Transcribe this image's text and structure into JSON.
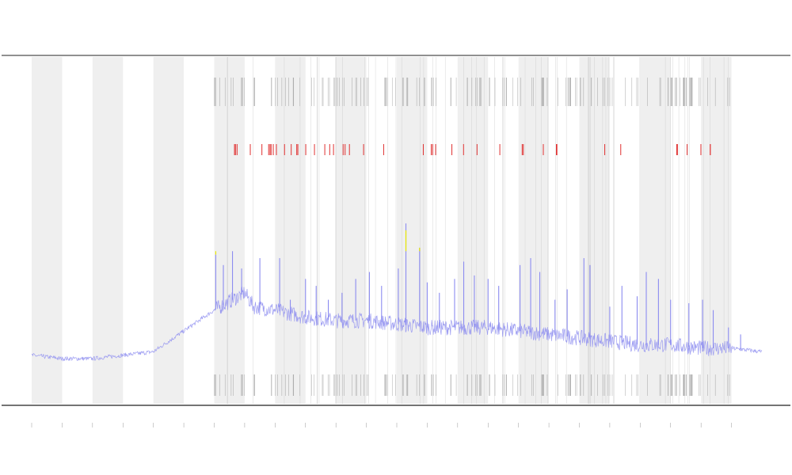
{
  "chart_data": {
    "type": "line",
    "title": "",
    "xlabel": "",
    "ylabel": "",
    "xlim": [
      0,
      24
    ],
    "ylim": [
      0,
      1
    ],
    "grid": false,
    "shaded_bands": [
      [
        0,
        1
      ],
      [
        2,
        3
      ],
      [
        4,
        5
      ],
      [
        6,
        7
      ],
      [
        8,
        9
      ],
      [
        10,
        11
      ],
      [
        12,
        13
      ],
      [
        14,
        15
      ],
      [
        16,
        17
      ],
      [
        18,
        19
      ],
      [
        20,
        21
      ],
      [
        22,
        23
      ]
    ],
    "x_tick_count": 24,
    "series": [
      {
        "color": "#8c8cf0",
        "threshold_colors": {
          "yellow": "#e8e800",
          "red": "#e03030"
        },
        "baseline": [
          [
            0.0,
            0.14
          ],
          [
            1.0,
            0.13
          ],
          [
            2.0,
            0.13
          ],
          [
            3.0,
            0.14
          ],
          [
            4.0,
            0.15
          ],
          [
            5.0,
            0.21
          ],
          [
            6.0,
            0.27
          ],
          [
            7.0,
            0.32
          ],
          [
            7.3,
            0.28
          ],
          [
            8.0,
            0.27
          ],
          [
            9.0,
            0.25
          ],
          [
            10.0,
            0.24
          ],
          [
            11.0,
            0.24
          ],
          [
            12.0,
            0.23
          ],
          [
            13.0,
            0.22
          ],
          [
            14.0,
            0.22
          ],
          [
            15.0,
            0.22
          ],
          [
            16.0,
            0.21
          ],
          [
            17.0,
            0.2
          ],
          [
            18.0,
            0.19
          ],
          [
            19.0,
            0.18
          ],
          [
            20.0,
            0.17
          ],
          [
            21.0,
            0.17
          ],
          [
            22.0,
            0.16
          ],
          [
            23.0,
            0.16
          ],
          [
            24.0,
            0.15
          ]
        ]
      }
    ],
    "spikes": [
      [
        6.05,
        0.43
      ],
      [
        6.3,
        0.4
      ],
      [
        6.6,
        0.44
      ],
      [
        6.9,
        0.39
      ],
      [
        7.5,
        0.42
      ],
      [
        8.15,
        0.42
      ],
      [
        8.5,
        0.3
      ],
      [
        9.0,
        0.36
      ],
      [
        9.35,
        0.34
      ],
      [
        9.75,
        0.3
      ],
      [
        10.2,
        0.32
      ],
      [
        10.65,
        0.36
      ],
      [
        11.1,
        0.38
      ],
      [
        11.5,
        0.34
      ],
      [
        12.05,
        0.39
      ],
      [
        12.3,
        0.52
      ],
      [
        12.75,
        0.45
      ],
      [
        13.0,
        0.35
      ],
      [
        13.4,
        0.32
      ],
      [
        13.9,
        0.36
      ],
      [
        14.2,
        0.41
      ],
      [
        14.55,
        0.37
      ],
      [
        15.0,
        0.36
      ],
      [
        15.35,
        0.34
      ],
      [
        16.05,
        0.4
      ],
      [
        16.4,
        0.42
      ],
      [
        16.7,
        0.38
      ],
      [
        17.2,
        0.3
      ],
      [
        17.6,
        0.33
      ],
      [
        18.15,
        0.42
      ],
      [
        18.35,
        0.4
      ],
      [
        19.0,
        0.28
      ],
      [
        19.4,
        0.34
      ],
      [
        19.9,
        0.31
      ],
      [
        20.2,
        0.38
      ],
      [
        20.6,
        0.36
      ],
      [
        21.0,
        0.3
      ],
      [
        21.6,
        0.29
      ],
      [
        22.05,
        0.3
      ],
      [
        22.4,
        0.27
      ],
      [
        22.9,
        0.22
      ],
      [
        23.3,
        0.2
      ]
    ]
  }
}
